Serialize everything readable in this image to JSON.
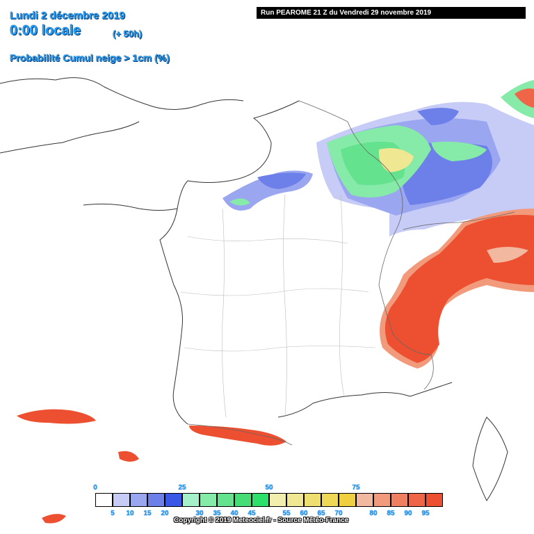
{
  "header": {
    "date": "Lundi 2 décembre 2019",
    "time": "0:00 locale",
    "offset": "(+ 50h)",
    "product": "Probabilité Cumul neige > 1cm (%)"
  },
  "run_banner": "Run PEAROME 21 Z du Vendredi 29 novembre 2019",
  "legend": {
    "major_labels": [
      "0",
      "25",
      "50",
      "75"
    ],
    "minor_labels": [
      "5",
      "10",
      "15",
      "20",
      "30",
      "35",
      "40",
      "45",
      "55",
      "60",
      "65",
      "70",
      "80",
      "85",
      "90",
      "95"
    ],
    "colors": [
      "#ffffff",
      "#c6ccf6",
      "#9aa6f0",
      "#6d7fe8",
      "#3a58e6",
      "#a4f0c8",
      "#86eaa8",
      "#64e28e",
      "#46dd76",
      "#2ce06a",
      "#f2eeb0",
      "#f0e792",
      "#efdf70",
      "#eed856",
      "#f0d040",
      "#f2b8a0",
      "#f29a7c",
      "#f07e60",
      "#ee6548",
      "#ec5030"
    ]
  },
  "copyright": "Copyright © 2019 Meteociel.fr - Source Météo-France"
}
